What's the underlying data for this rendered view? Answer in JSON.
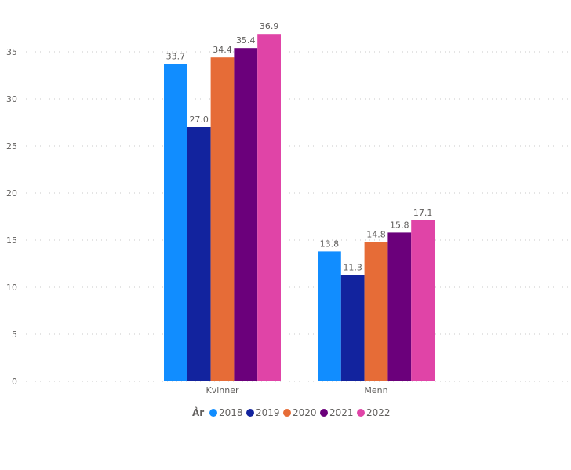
{
  "chart_data": {
    "type": "bar",
    "title": "",
    "xlabel": "",
    "ylabel": "",
    "categories": [
      "Kvinner",
      "Menn"
    ],
    "series": [
      {
        "name": "2018",
        "color": "#118DFF",
        "values": [
          33.7,
          13.8
        ]
      },
      {
        "name": "2019",
        "color": "#12239E",
        "values": [
          27.0,
          11.3
        ]
      },
      {
        "name": "2020",
        "color": "#E66C37",
        "values": [
          34.4,
          14.8
        ]
      },
      {
        "name": "2021",
        "color": "#6B007B",
        "values": [
          35.4,
          15.8
        ]
      },
      {
        "name": "2022",
        "color": "#E044A7",
        "values": [
          36.9,
          17.1
        ]
      }
    ],
    "ylim": [
      0,
      35
    ],
    "yticks": [
      0,
      5,
      10,
      15,
      20,
      25,
      30,
      35
    ],
    "grid": true,
    "data_labels": true,
    "legend": {
      "title": "År",
      "placement": "bottom"
    }
  }
}
